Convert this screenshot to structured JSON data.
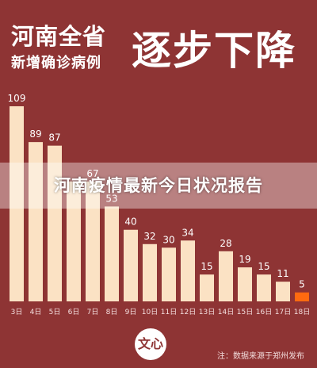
{
  "header": {
    "title_line1": "河南全省",
    "title_line2": "新增确诊病例",
    "headline": "逐步下降"
  },
  "banner": {
    "text": "河南疫情最新今日状况报告"
  },
  "logo": {
    "text": "文心"
  },
  "source": {
    "text": "注：数据来源于郑州发布"
  },
  "colors": {
    "background": "#8e3434",
    "bar": "#fbe2c4",
    "highlight_bar": "#ff6a10",
    "text": "#ffffff"
  },
  "chart_data": {
    "type": "bar",
    "categories": [
      "3日",
      "4日",
      "5日",
      "6日",
      "7日",
      "8日",
      "9日",
      "10日",
      "11日",
      "12日",
      "13日",
      "14日",
      "15日",
      "16日",
      "17日",
      "18日"
    ],
    "values": [
      109,
      89,
      87,
      67,
      67,
      53,
      40,
      32,
      30,
      34,
      15,
      28,
      19,
      15,
      11,
      5
    ],
    "value_labels": [
      "109",
      "89",
      "87",
      "",
      "67",
      "53",
      "40",
      "32",
      "30",
      "34",
      "15",
      "28",
      "19",
      "15",
      "11",
      "5"
    ],
    "highlight_index": 15,
    "title": "",
    "xlabel": "",
    "ylabel": "",
    "ylim": [
      0,
      109
    ],
    "grid": false
  }
}
